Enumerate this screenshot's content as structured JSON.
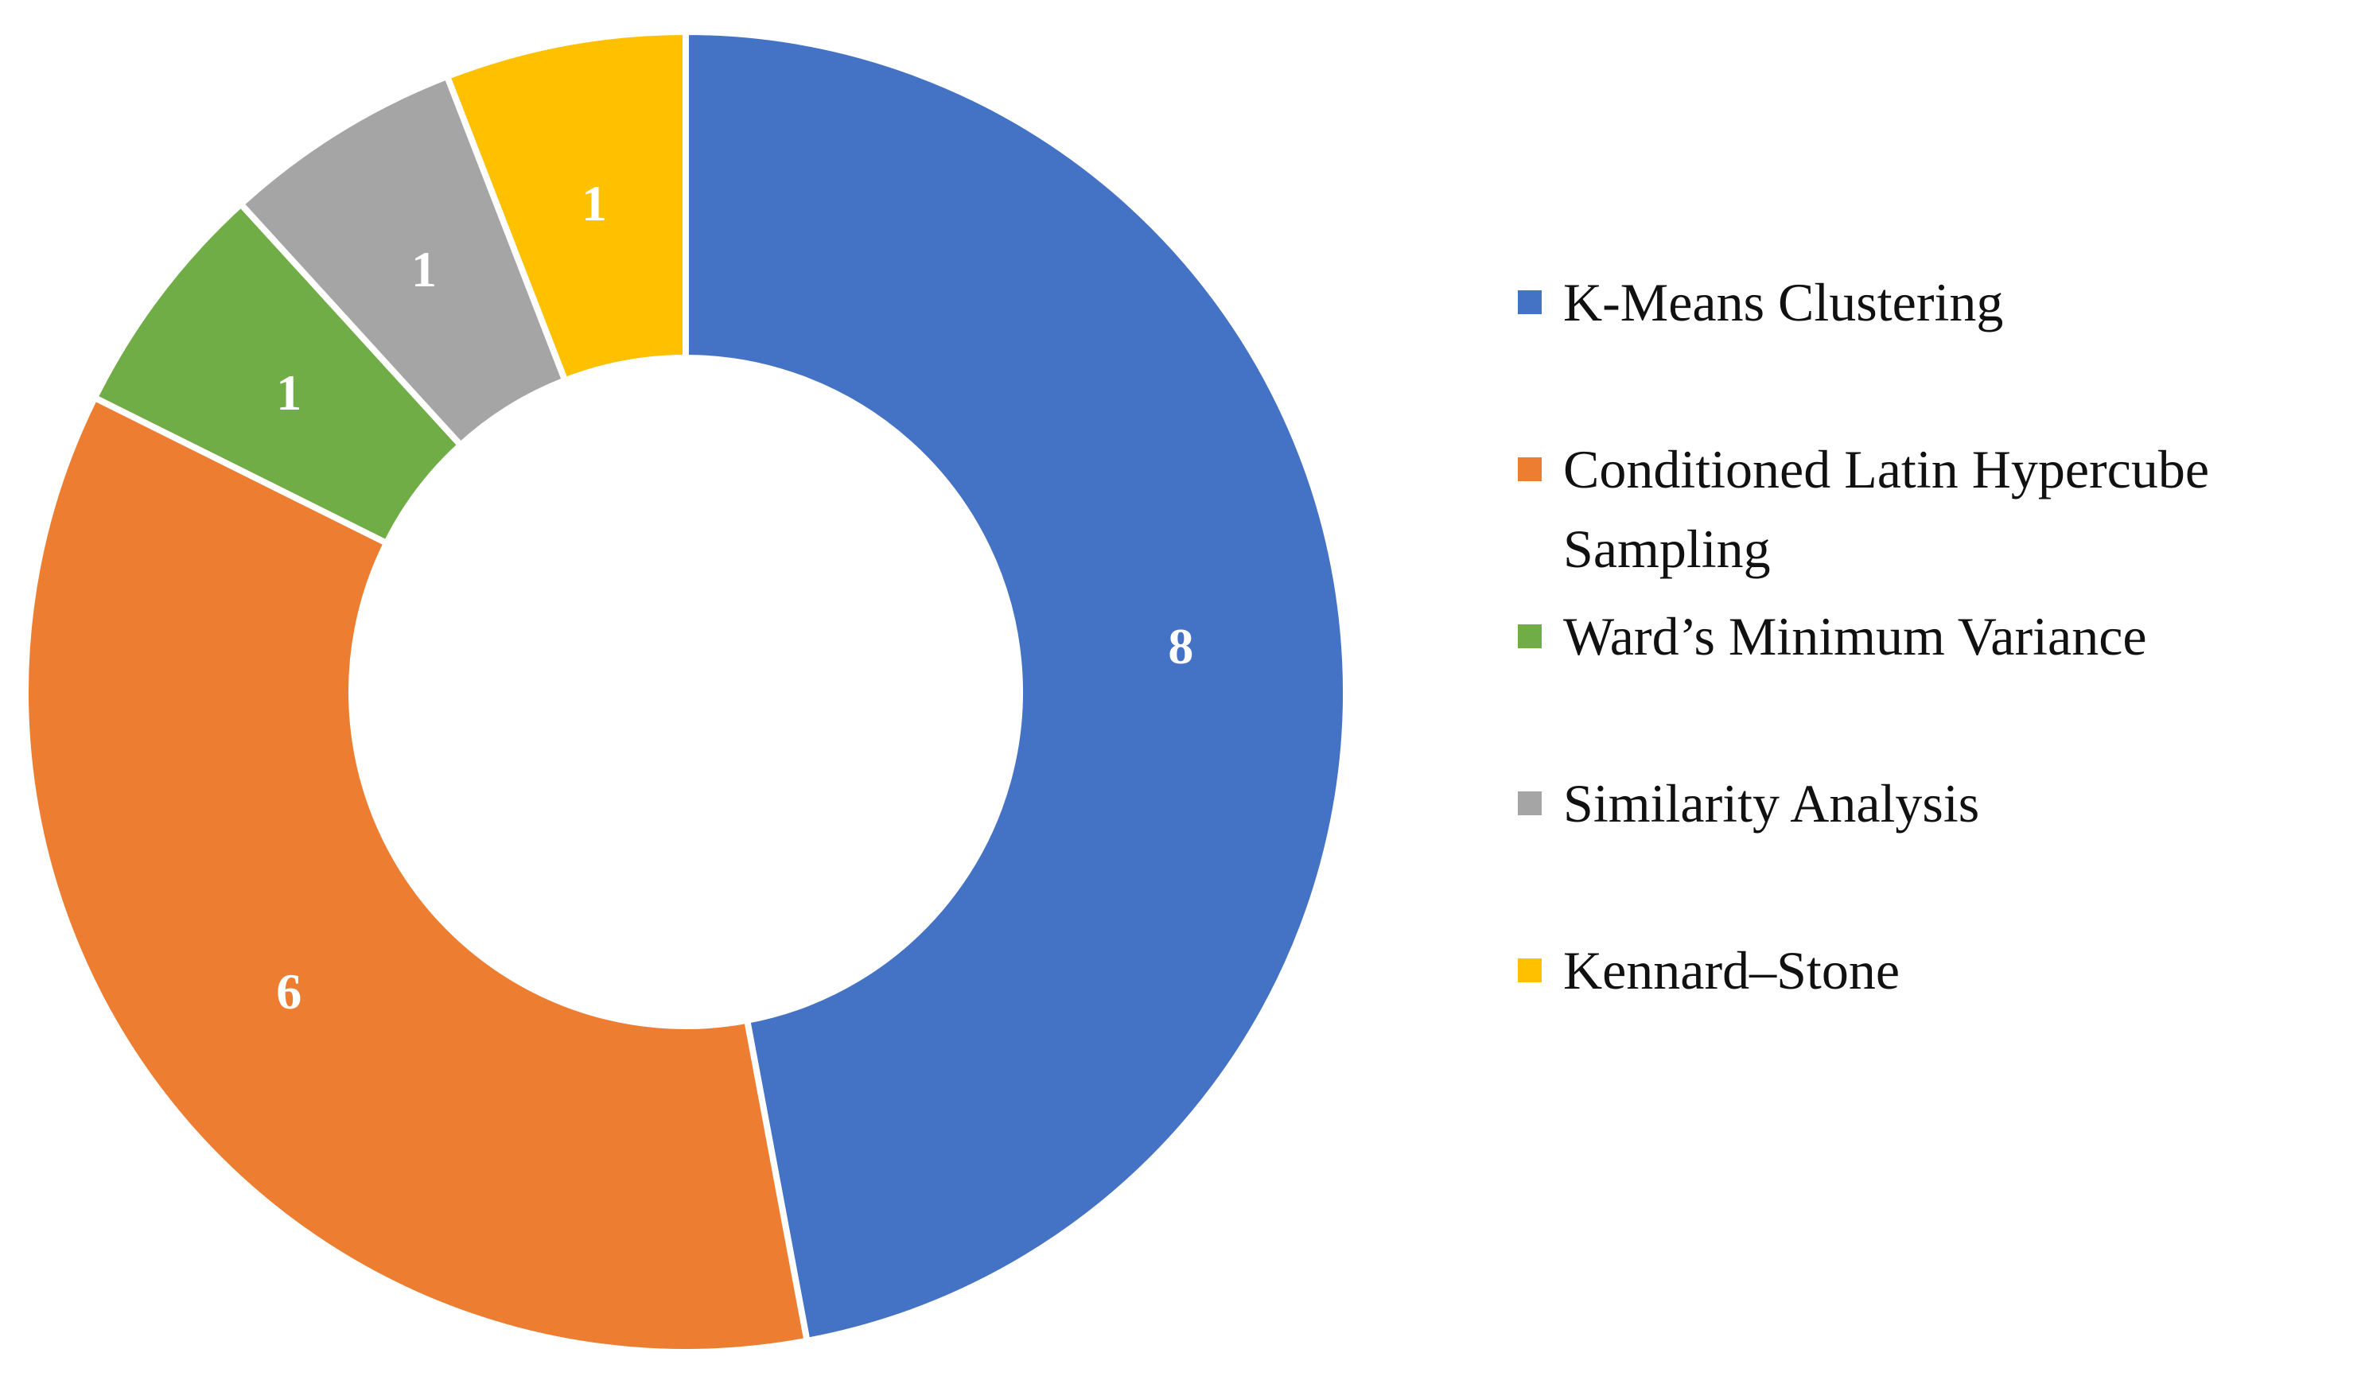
{
  "chart_data": {
    "type": "pie",
    "style": "donut",
    "categories": [
      "K-Means Clustering",
      "Conditioned Latin Hypercube Sampling",
      "Ward’s Minimum Variance",
      "Similarity Analysis",
      "Kennard–Stone"
    ],
    "values": [
      8,
      6,
      1,
      1,
      1
    ],
    "data_labels": [
      "8",
      "6",
      "1",
      "1",
      "1"
    ],
    "colors": [
      "#4472C4",
      "#ED7D31",
      "#70AD47",
      "#A5A5A5",
      "#FFC000"
    ],
    "legend": {
      "position": "right",
      "entries": [
        [
          "K-Means Clustering"
        ],
        [
          "Conditioned Latin Hypercube",
          "Sampling"
        ],
        [
          "Ward’s Minimum Variance"
        ],
        [
          "Similarity Analysis"
        ],
        [
          "Kennard–Stone"
        ]
      ]
    },
    "start_angle_deg": 0,
    "direction": "clockwise"
  }
}
